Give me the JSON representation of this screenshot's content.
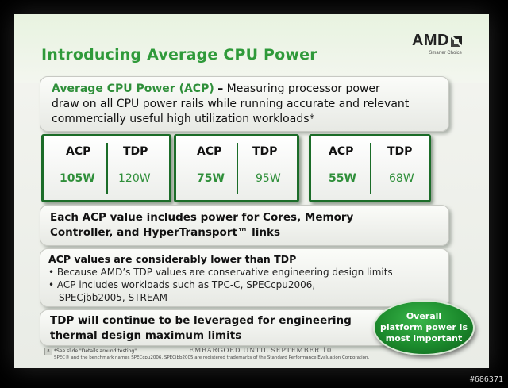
{
  "slide": {
    "title": "Introducing Average CPU Power",
    "logo": {
      "word": "AMD",
      "tagline": "Smarter Choice"
    },
    "intro": {
      "highlight": "Average CPU Power (ACP)",
      "dash": "–",
      "line1_rest": "Measuring processor power",
      "line2": "draw on all CPU power rails while running accurate and relevant",
      "line3": "commercially useful high utilization workloads*"
    },
    "cards": [
      {
        "acp_label": "ACP",
        "tdp_label": "TDP",
        "acp_value": "105W",
        "tdp_value": "120W"
      },
      {
        "acp_label": "ACP",
        "tdp_label": "TDP",
        "acp_value": "75W",
        "tdp_value": "95W"
      },
      {
        "acp_label": "ACP",
        "tdp_label": "TDP",
        "acp_value": "55W",
        "tdp_value": "68W"
      }
    ],
    "includes": {
      "line1": "Each ACP value includes power for Cores, Memory",
      "line2": "Controller, and HyperTransport™ links"
    },
    "lower": {
      "heading": "ACP values are considerably lower than TDP",
      "bullet1": "• Because AMD’s TDP values are conservative engineering design limits",
      "bullet2": "• ACP includes workloads such as TPC-C, SPECcpu2006,",
      "bullet2_cont": "SPECjbb2005, STREAM"
    },
    "tdp_box": {
      "line1": "TDP will continue to be leveraged for engineering",
      "line2": "thermal design maximum limits"
    },
    "badge": {
      "line1": "Overall",
      "line2": "platform power is",
      "line3": "most important"
    },
    "footer": {
      "page_number": "8",
      "note1": "*See slide \"Details around testing\"",
      "embargo": "EMBARGOED UNTIL SEPTEMBER 10",
      "note2": "SPEC® and the benchmark names SPECcpu2006, SPECjbb2005 are registered trademarks of the Standard Performance Evaluation Corporation."
    }
  },
  "watermark": "#686371",
  "colors": {
    "accent_green": "#2f9a3a",
    "card_border": "#1b6c28",
    "badge_green": "#1b8a2c"
  }
}
